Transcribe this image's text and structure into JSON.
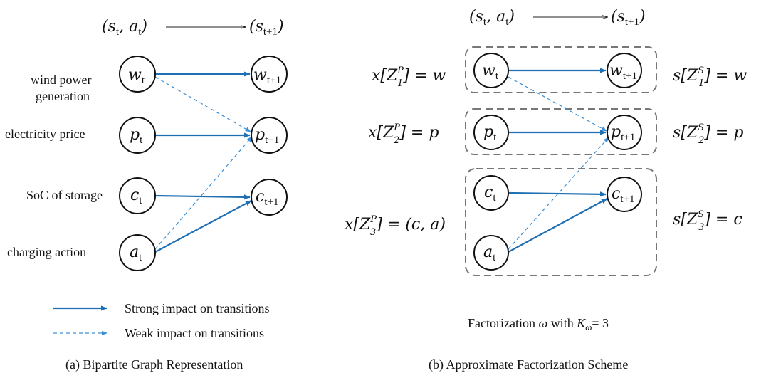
{
  "colors": {
    "strong": "#1f6fb4",
    "weak": "#3c8fd6",
    "box": "#777777"
  },
  "panel_a": {
    "header_left": "(s",
    "header_left_sub1": "t",
    "header_left_mid": ", a",
    "header_left_sub2": "t",
    "header_left_end": ")",
    "header_right": "(s",
    "header_right_sub": "t+1",
    "header_right_end": ")",
    "row_labels": [
      "wind power",
      "generation",
      "electricity price",
      "SoC of storage",
      "charging action"
    ],
    "nodes_t": [
      {
        "sym": "w",
        "sub": "t"
      },
      {
        "sym": "p",
        "sub": "t"
      },
      {
        "sym": "c",
        "sub": "t"
      },
      {
        "sym": "a",
        "sub": "t"
      }
    ],
    "nodes_t1": [
      {
        "sym": "w",
        "sub": "t+1"
      },
      {
        "sym": "p",
        "sub": "t+1"
      },
      {
        "sym": "c",
        "sub": "t+1"
      }
    ],
    "legend": {
      "strong": "Strong impact on transitions",
      "weak": "Weak impact on transitions"
    },
    "caption": "(a)  Bipartite Graph Representation"
  },
  "panel_b": {
    "header_left": "(s",
    "header_left_sub1": "t",
    "header_left_mid": ", a",
    "header_left_sub2": "t",
    "header_left_end": ")",
    "header_right": "(s",
    "header_right_sub": "t+1",
    "header_right_end": ")",
    "left_labels": [
      {
        "pre": "x[Z",
        "sup": "P",
        "sub": "1",
        "post": "] = w"
      },
      {
        "pre": "x[Z",
        "sup": "P",
        "sub": "2",
        "post": "] = p"
      },
      {
        "pre": "x[Z",
        "sup": "P",
        "sub": "3",
        "post": "] = (c, a)"
      }
    ],
    "right_labels": [
      {
        "pre": "s[Z",
        "sup": "S",
        "sub": "1",
        "post": "] = w"
      },
      {
        "pre": "s[Z",
        "sup": "S",
        "sub": "2",
        "post": "] = p"
      },
      {
        "pre": "s[Z",
        "sup": "S",
        "sub": "3",
        "post": "] = c"
      }
    ],
    "nodes_t": [
      {
        "sym": "w",
        "sub": "t"
      },
      {
        "sym": "p",
        "sub": "t"
      },
      {
        "sym": "c",
        "sub": "t"
      },
      {
        "sym": "a",
        "sub": "t"
      }
    ],
    "nodes_t1": [
      {
        "sym": "w",
        "sub": "t+1"
      },
      {
        "sym": "p",
        "sub": "t+1"
      },
      {
        "sym": "c",
        "sub": "t+1"
      }
    ],
    "factorization": {
      "pre": "Factorization ",
      "omega": "ω",
      "mid": " with ",
      "K": "K",
      "K_sub": "ω",
      "post": "= 3"
    },
    "caption": "(b)  Approximate Factorization Scheme"
  }
}
